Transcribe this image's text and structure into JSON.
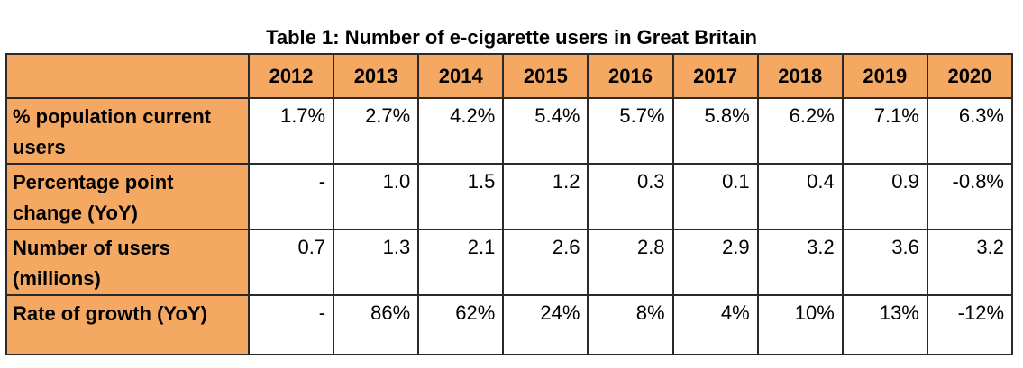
{
  "title": "Table 1: Number of e-cigarette users in Great Britain",
  "table": {
    "years": [
      "2012",
      "2013",
      "2014",
      "2015",
      "2016",
      "2017",
      "2018",
      "2019",
      "2020"
    ],
    "rows": [
      {
        "label": "% population current users",
        "values": [
          "1.7%",
          "2.7%",
          "4.2%",
          "5.4%",
          "5.7%",
          "5.8%",
          "6.2%",
          "7.1%",
          "6.3%"
        ]
      },
      {
        "label": "Percentage point change (YoY)",
        "values": [
          "-",
          "1.0",
          "1.5",
          "1.2",
          "0.3",
          "0.1",
          "0.4",
          "0.9",
          "-0.8%"
        ]
      },
      {
        "label": "Number of users (millions)",
        "values": [
          "0.7",
          "1.3",
          "2.1",
          "2.6",
          "2.8",
          "2.9",
          "3.2",
          "3.6",
          "3.2"
        ]
      },
      {
        "label": "Rate of growth (YoY)",
        "values": [
          "-",
          "86%",
          "62%",
          "24%",
          "8%",
          "4%",
          "10%",
          "13%",
          "-12%"
        ]
      }
    ]
  },
  "colors": {
    "header_fill": "#f4a862",
    "border": "#2a2a2a"
  }
}
